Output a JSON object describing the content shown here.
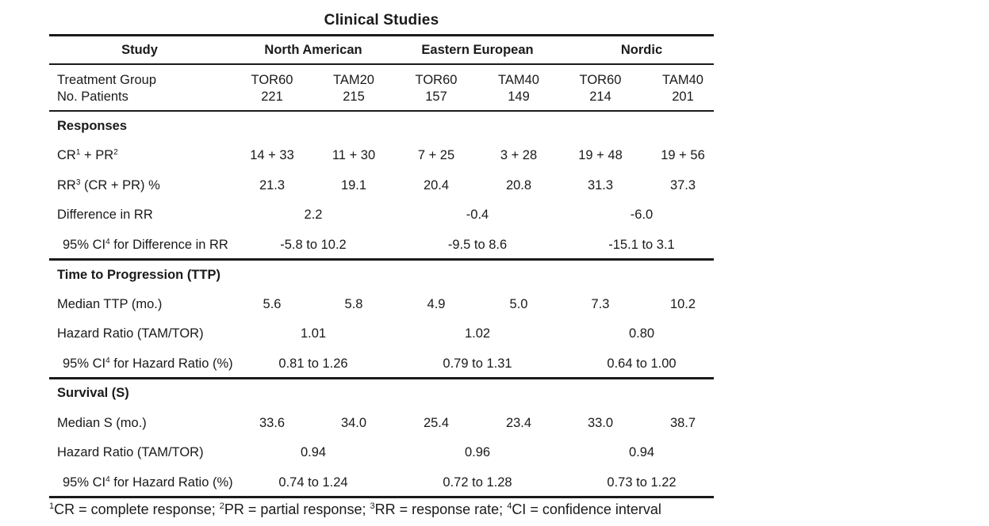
{
  "title": "Clinical Studies",
  "header": {
    "study": "Study",
    "groups": [
      "North American",
      "Eastern European",
      "Nordic"
    ]
  },
  "treatment": {
    "label": "Treatment Group",
    "values": [
      "TOR60",
      "TAM20",
      "TOR60",
      "TAM40",
      "TOR60",
      "TAM40"
    ]
  },
  "patients": {
    "label": "No. Patients",
    "values": [
      "221",
      "215",
      "157",
      "149",
      "214",
      "201"
    ]
  },
  "responses": {
    "heading": "Responses",
    "cr_pr": {
      "label_a": "CR",
      "sup_a": "1",
      "label_b": " + PR",
      "sup_b": "2",
      "values": [
        "14 + 33",
        "11 + 30",
        "7 + 25",
        "3 + 28",
        "19 + 48",
        "19 + 56"
      ]
    },
    "rr": {
      "label_a": "RR",
      "sup_a": "3",
      "label_b": " (CR + PR) %",
      "values": [
        "21.3",
        "19.1",
        "20.4",
        "20.8",
        "31.3",
        "37.3"
      ]
    },
    "diff": {
      "label": "Difference in RR",
      "values": [
        "2.2",
        "-0.4",
        "-6.0"
      ]
    },
    "ci": {
      "label_a": "95% CI",
      "sup_a": "4",
      "label_b": " for Difference in RR",
      "values": [
        "-5.8 to 10.2",
        "-9.5 to 8.6",
        "-15.1 to 3.1"
      ]
    }
  },
  "ttp": {
    "heading": "Time to Progression (TTP)",
    "median": {
      "label": "Median TTP (mo.)",
      "values": [
        "5.6",
        "5.8",
        "4.9",
        "5.0",
        "7.3",
        "10.2"
      ]
    },
    "hr": {
      "label": "Hazard Ratio (TAM/TOR)",
      "values": [
        "1.01",
        "1.02",
        "0.80"
      ]
    },
    "ci": {
      "label_a": "95% CI",
      "sup_a": "4",
      "label_b": " for Hazard Ratio (%)",
      "values": [
        "0.81 to 1.26",
        "0.79 to 1.31",
        "0.64 to 1.00"
      ]
    }
  },
  "survival": {
    "heading": "Survival (S)",
    "median": {
      "label": "Median S (mo.)",
      "values": [
        "33.6",
        "34.0",
        "25.4",
        "23.4",
        "33.0",
        "38.7"
      ]
    },
    "hr": {
      "label": "Hazard Ratio (TAM/TOR)",
      "values": [
        "0.94",
        "0.96",
        "0.94"
      ]
    },
    "ci": {
      "label_a": "95% CI",
      "sup_a": "4",
      "label_b": " for Hazard Ratio (%)",
      "values": [
        "0.74 to 1.24",
        "0.72 to 1.28",
        "0.73 to 1.22"
      ]
    }
  },
  "footnote": {
    "s1": "1",
    "t1": "CR = complete response; ",
    "s2": "2",
    "t2": "PR = partial response; ",
    "s3": "3",
    "t3": "RR = response rate; ",
    "s4": "4",
    "t4": "CI = confidence interval"
  }
}
